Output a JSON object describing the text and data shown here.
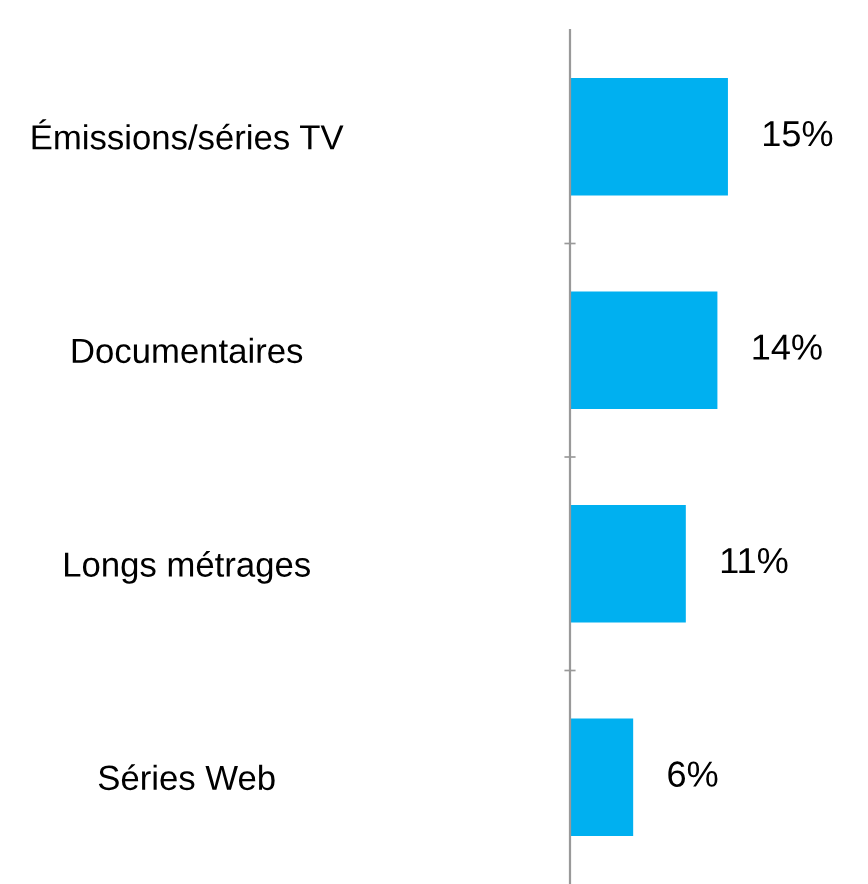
{
  "chart_data": {
    "type": "bar",
    "orientation": "horizontal",
    "categories": [
      "Émissions/séries TV",
      "Documentaires",
      "Longs métrages",
      "Séries Web"
    ],
    "values": [
      15,
      14,
      11,
      6
    ],
    "value_labels": [
      "15%",
      "14%",
      "11%",
      "6%"
    ],
    "color": "#00b0f0",
    "grid": false,
    "legend": false
  }
}
